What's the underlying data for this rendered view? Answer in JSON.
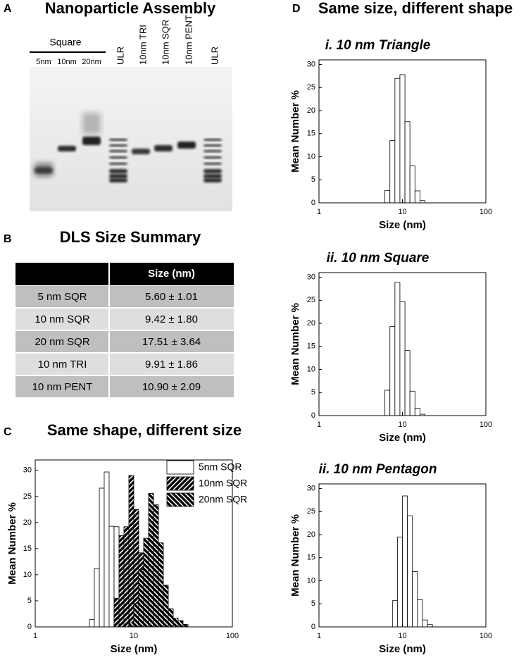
{
  "panels": [
    {
      "label": "A",
      "title": "Nanoparticle Assembly"
    },
    {
      "label": "B",
      "title": "DLS Size Summary"
    },
    {
      "label": "C",
      "title": "Same shape, different size"
    },
    {
      "label": "D",
      "title": "Same size, different shape"
    }
  ],
  "gel": {
    "group_label": "Square",
    "lanes": [
      "5nm",
      "10nm",
      "20nm",
      "ULR",
      "10nm TRI",
      "10nm SQR",
      "10nm PENT",
      "ULR"
    ]
  },
  "table": {
    "header": "Size (nm)",
    "rows": [
      [
        "5 nm SQR",
        "5.60 ± 1.01"
      ],
      [
        "10 nm SQR",
        "9.42 ± 1.80"
      ],
      [
        "20 nm SQR",
        "17.51 ± 3.64"
      ],
      [
        "10 nm TRI",
        "9.91 ± 1.86"
      ],
      [
        "10 nm PENT",
        "10.90 ± 2.09"
      ]
    ]
  },
  "chart_data": [
    {
      "type": "histogram",
      "xlabel": "Size (nm)",
      "ylabel": "Mean Number %",
      "xscale": "log",
      "xlim": [
        1,
        100
      ],
      "xticks": [
        1,
        10,
        100
      ],
      "ylim": [
        0,
        32
      ],
      "yticks": [
        0,
        5,
        10,
        15,
        20,
        25,
        30
      ],
      "legend": "upper right",
      "bins": [
        3.16,
        3.55,
        3.98,
        4.47,
        5.01,
        5.62,
        6.31,
        7.08,
        7.94,
        8.91,
        10,
        11.22,
        12.59,
        14.13,
        15.85,
        17.78,
        19.95,
        22.39,
        25.12,
        28.18,
        31.62,
        35.48,
        39.81
      ],
      "series": [
        {
          "name": "5nm SQR",
          "color": "#ffffff",
          "hatch": "none",
          "values": [
            0,
            1.4,
            11.2,
            26.6,
            29.7,
            19.3,
            19.2,
            5.5,
            1.8,
            0.4,
            0,
            0,
            0,
            0,
            0,
            0,
            0,
            0,
            0,
            0,
            0,
            0
          ]
        },
        {
          "name": "10nm SQR",
          "color": "#000000",
          "hatch": "forward",
          "values": [
            0,
            0,
            0,
            0,
            0,
            0,
            5.5,
            17.5,
            19.2,
            29.0,
            22.5,
            14.2,
            5.1,
            1.0,
            0.2,
            0,
            0,
            0,
            0,
            0,
            0,
            0
          ]
        },
        {
          "name": "20nm SQR",
          "color": "#000000",
          "hatch": "backward",
          "values": [
            0,
            0,
            0,
            0,
            0,
            0,
            0,
            0,
            0,
            0.8,
            4.5,
            11.0,
            17.0,
            25.6,
            23.4,
            16.1,
            8.0,
            3.5,
            1.7,
            1.2,
            0.5,
            0
          ]
        }
      ]
    },
    {
      "type": "histogram",
      "title": "i. 10 nm Triangle",
      "xlabel": "Size (nm)",
      "ylabel": "Mean Number %",
      "xscale": "log",
      "xlim": [
        1,
        100
      ],
      "xticks": [
        1,
        10,
        100
      ],
      "ylim": [
        0,
        31
      ],
      "yticks": [
        0,
        5,
        10,
        15,
        20,
        25,
        30
      ],
      "bins": [
        6.17,
        7.08,
        8.13,
        9.33,
        10.72,
        12.3,
        14.13,
        16.22,
        18.62
      ],
      "series": [
        {
          "name": "10 nm Triangle",
          "color": "#ffffff",
          "hatch": "none",
          "values": [
            2.7,
            13.5,
            27.0,
            27.8,
            17.6,
            8.0,
            2.6,
            0.5
          ]
        }
      ]
    },
    {
      "type": "histogram",
      "title": "ii. 10 nm Square",
      "xlabel": "Size (nm)",
      "ylabel": "Mean Number %",
      "xscale": "log",
      "xlim": [
        1,
        100
      ],
      "xticks": [
        1,
        10,
        100
      ],
      "ylim": [
        0,
        31
      ],
      "yticks": [
        0,
        5,
        10,
        15,
        20,
        25,
        30
      ],
      "bins": [
        6.17,
        7.08,
        8.13,
        9.33,
        10.72,
        12.3,
        14.13,
        16.22,
        18.62
      ],
      "series": [
        {
          "name": "10 nm Square",
          "color": "#ffffff",
          "hatch": "none",
          "values": [
            5.5,
            19.3,
            28.9,
            24.7,
            14.1,
            5.3,
            1.6,
            0.3
          ]
        }
      ]
    },
    {
      "type": "histogram",
      "title": "ii. 10 nm Pentagon",
      "xlabel": "Size (nm)",
      "ylabel": "Mean Number %",
      "xscale": "log",
      "xlim": [
        1,
        100
      ],
      "xticks": [
        1,
        10,
        100
      ],
      "ylim": [
        0,
        31
      ],
      "yticks": [
        0,
        5,
        10,
        15,
        20,
        25,
        30
      ],
      "bins": [
        7.59,
        8.71,
        10.0,
        11.48,
        13.18,
        15.14,
        17.38,
        19.95,
        22.91
      ],
      "series": [
        {
          "name": "10 nm Pentagon",
          "color": "#ffffff",
          "hatch": "none",
          "values": [
            5.7,
            19.5,
            28.4,
            24.1,
            12.0,
            5.9,
            1.5,
            0.5
          ]
        }
      ]
    }
  ]
}
